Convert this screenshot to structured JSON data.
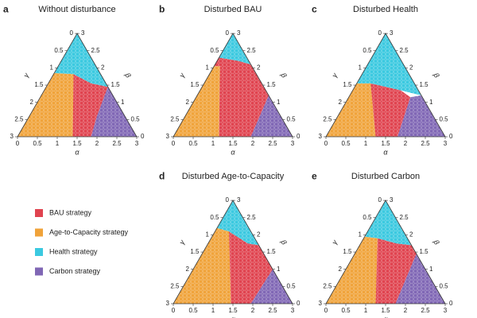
{
  "chart_data": [
    {
      "type": "ternary",
      "label": "a",
      "title": "Without disturbance",
      "alpha_label": "α",
      "beta_label": "β",
      "gamma_label": "γ",
      "lim": [
        0,
        3
      ],
      "ticks": [
        0,
        0.5,
        1,
        1.5,
        2,
        2.5,
        3
      ],
      "regions": [
        {
          "color": "#f0a33a",
          "alpha": [
            0,
            1.39,
            0.5,
            0
          ],
          "beta": [
            0,
            0,
            1.82,
            1.85
          ]
        },
        {
          "color": "#e0434f",
          "alpha": [
            1.39,
            1.85,
            1.7,
            1.55,
            1.08,
            0.5
          ],
          "beta": [
            0,
            0,
            0.6,
            1.45,
            1.55,
            1.82
          ]
        },
        {
          "color": "#3bc9e0",
          "alpha": [
            0,
            0,
            0.5,
            1.08,
            1.55
          ],
          "beta": [
            3,
            1.85,
            1.82,
            1.55,
            1.45
          ]
        },
        {
          "color": "#8067b5",
          "alpha": [
            1.85,
            3,
            1.55,
            1.7
          ],
          "beta": [
            0,
            0,
            1.45,
            0.6
          ]
        }
      ]
    },
    {
      "type": "ternary",
      "label": "b",
      "title": "Disturbed BAU",
      "alpha_label": "α",
      "beta_label": "β",
      "gamma_label": "γ",
      "lim": [
        0,
        3
      ],
      "ticks": [
        0,
        0.5,
        1,
        1.5,
        2,
        2.5,
        3
      ],
      "regions": [
        {
          "color": "#f0a33a",
          "alpha": [
            0,
            1.15,
            0.15,
            0
          ],
          "beta": [
            0,
            0,
            2.05,
            2.05
          ]
        },
        {
          "color": "#e0434f",
          "alpha": [
            1.15,
            1.95,
            1.8,
            0.9,
            0.55,
            0,
            0,
            0.15
          ],
          "beta": [
            0,
            0,
            1.2,
            2.1,
            2.2,
            2.3,
            2.05,
            2.05
          ]
        },
        {
          "color": "#3bc9e0",
          "alpha": [
            0,
            0,
            0.55,
            0.9
          ],
          "beta": [
            3,
            2.3,
            2.2,
            2.1
          ]
        },
        {
          "color": "#8067b5",
          "alpha": [
            1.95,
            3,
            1.8
          ],
          "beta": [
            0,
            0,
            1.2
          ]
        }
      ]
    },
    {
      "type": "ternary",
      "label": "c",
      "title": "Disturbed Health",
      "alpha_label": "α",
      "beta_label": "β",
      "gamma_label": "γ",
      "lim": [
        0,
        3
      ],
      "ticks": [
        0,
        0.5,
        1,
        1.5,
        2,
        2.5,
        3
      ],
      "regions": [
        {
          "color": "#f0a33a",
          "alpha": [
            0,
            1.25,
            0.35,
            0
          ],
          "beta": [
            0,
            0,
            1.55,
            1.55
          ]
        },
        {
          "color": "#e0434f",
          "alpha": [
            1.25,
            1.8,
            1.55,
            1.2,
            0.35
          ],
          "beta": [
            0,
            0,
            1.15,
            1.35,
            1.55
          ]
        },
        {
          "color": "#3bc9e0",
          "alpha": [
            0,
            0,
            0.35,
            1.2,
            1.8
          ],
          "beta": [
            3,
            1.55,
            1.55,
            1.35,
            1.2
          ]
        },
        {
          "color": "#8067b5",
          "alpha": [
            1.8,
            3,
            1.8,
            1.55
          ],
          "beta": [
            0,
            0,
            1.2,
            1.15
          ]
        }
      ]
    },
    {
      "type": "ternary",
      "label": "d",
      "title": "Disturbed Age-to-Capacity",
      "alpha_label": "α",
      "beta_label": "β",
      "gamma_label": "γ",
      "lim": [
        0,
        3
      ],
      "ticks": [
        0,
        0.5,
        1,
        1.5,
        2,
        2.5,
        3
      ],
      "regions": [
        {
          "color": "#f0a33a",
          "alpha": [
            0,
            1.45,
            0.35,
            0
          ],
          "beta": [
            0,
            0,
            2.1,
            2.2
          ]
        },
        {
          "color": "#e0434f",
          "alpha": [
            1.45,
            1.95,
            2.0,
            1.3,
            1.0,
            0.35
          ],
          "beta": [
            0,
            0,
            1.0,
            1.7,
            1.75,
            2.1
          ]
        },
        {
          "color": "#3bc9e0",
          "alpha": [
            0,
            0,
            0.35,
            1.0,
            1.3
          ],
          "beta": [
            3,
            2.2,
            2.1,
            1.75,
            1.7
          ]
        },
        {
          "color": "#8067b5",
          "alpha": [
            1.95,
            3,
            2.0
          ],
          "beta": [
            0,
            0,
            1.0
          ]
        }
      ]
    },
    {
      "type": "ternary",
      "label": "e",
      "title": "Disturbed Carbon",
      "alpha_label": "α",
      "beta_label": "β",
      "gamma_label": "γ",
      "lim": [
        0,
        3
      ],
      "ticks": [
        0,
        0.5,
        1,
        1.5,
        2,
        2.5,
        3
      ],
      "regions": [
        {
          "color": "#f0a33a",
          "alpha": [
            0,
            1.25,
            0.35,
            0
          ],
          "beta": [
            0,
            0,
            1.9,
            1.95
          ]
        },
        {
          "color": "#e0434f",
          "alpha": [
            1.25,
            1.75,
            1.55,
            1.3,
            0.9,
            0.35
          ],
          "beta": [
            0,
            0,
            1.45,
            1.7,
            1.75,
            1.9
          ]
        },
        {
          "color": "#3bc9e0",
          "alpha": [
            0,
            0,
            0.35,
            0.9,
            1.3
          ],
          "beta": [
            3,
            1.95,
            1.9,
            1.75,
            1.7
          ]
        },
        {
          "color": "#8067b5",
          "alpha": [
            1.75,
            3,
            1.55
          ],
          "beta": [
            0,
            0,
            1.45
          ]
        }
      ]
    }
  ],
  "legend": [
    {
      "name": "BAU strategy",
      "color": "#e0434f"
    },
    {
      "name": "Age-to-Capacity strategy",
      "color": "#f0a33a"
    },
    {
      "name": "Health strategy",
      "color": "#3bc9e0"
    },
    {
      "name": "Carbon strategy",
      "color": "#8067b5"
    }
  ]
}
